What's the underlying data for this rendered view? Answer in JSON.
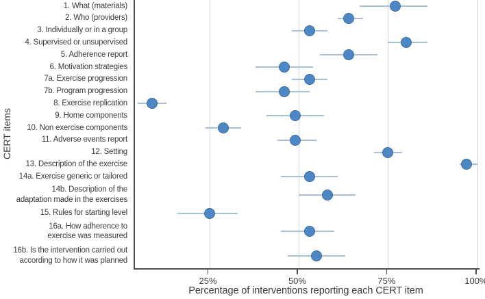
{
  "figure": {
    "x_axis_title": "Percentage of interventions reporting each CERT item",
    "y_axis_title": "CERT items"
  },
  "colors": {
    "dot_fill": "#4c87c6",
    "dot_border": "#3b6da5",
    "error_bar": "#a6bfd6",
    "gridline": "#cbd5dc",
    "axis_line": "#4d4d4d",
    "text": "#3b3b3b"
  },
  "chart_data": {
    "type": "scatter",
    "subtype": "horizontal-dot-plot-with-error-bars",
    "title": "",
    "xlabel": "Percentage of interventions reporting each CERT item",
    "ylabel": "CERT items",
    "x_unit": "percent",
    "x_ticks": [
      25,
      50,
      75,
      100
    ],
    "x_tick_labels": [
      "25%",
      "50%",
      "75%",
      "100%"
    ],
    "x_axis_range_visible": [
      4.2,
      100.6
    ],
    "grid": "vertical gridlines at each x tick",
    "legend": "none",
    "items": [
      {
        "label_lines": [
          "1. What (materials)"
        ],
        "value": 77,
        "ci_low": 67,
        "ci_high": 86
      },
      {
        "label_lines": [
          "2. Who (providers)"
        ],
        "value": 64,
        "ci_low": 61,
        "ci_high": 68
      },
      {
        "label_lines": [
          "3. Individually or in a group"
        ],
        "value": 53,
        "ci_low": 48,
        "ci_high": 58
      },
      {
        "label_lines": [
          "4. Supervised or unsupervised"
        ],
        "value": 80,
        "ci_low": 75,
        "ci_high": 86
      },
      {
        "label_lines": [
          "5. Adherence report"
        ],
        "value": 64,
        "ci_low": 56,
        "ci_high": 72
      },
      {
        "label_lines": [
          "6. Motivation strategies"
        ],
        "value": 46,
        "ci_low": 38,
        "ci_high": 54
      },
      {
        "label_lines": [
          "7a. Exercise progression"
        ],
        "value": 53,
        "ci_low": 48,
        "ci_high": 58
      },
      {
        "label_lines": [
          "7b. Program progression"
        ],
        "value": 46,
        "ci_low": 38,
        "ci_high": 53
      },
      {
        "label_lines": [
          "8. Exercise replication"
        ],
        "value": 9,
        "ci_low": 5,
        "ci_high": 13
      },
      {
        "label_lines": [
          "9. Home components"
        ],
        "value": 49,
        "ci_low": 41,
        "ci_high": 57
      },
      {
        "label_lines": [
          "10. Non exercise components"
        ],
        "value": 29,
        "ci_low": 24,
        "ci_high": 34
      },
      {
        "label_lines": [
          "11. Adverse events report"
        ],
        "value": 49,
        "ci_low": 44,
        "ci_high": 55
      },
      {
        "label_lines": [
          "12. Setting"
        ],
        "value": 75,
        "ci_low": 71,
        "ci_high": 79
      },
      {
        "label_lines": [
          "13. Description of the exercise"
        ],
        "value": 97,
        "ci_low": 95,
        "ci_high": 100
      },
      {
        "label_lines": [
          "14a. Exercise generic or tailored"
        ],
        "value": 53,
        "ci_low": 45,
        "ci_high": 61
      },
      {
        "label_lines": [
          "14b. Description of the",
          "adaptation made in the exercises"
        ],
        "value": 58,
        "ci_low": 50,
        "ci_high": 66
      },
      {
        "label_lines": [
          "15. Rules for starting level"
        ],
        "value": 25,
        "ci_low": 16,
        "ci_high": 33
      },
      {
        "label_lines": [
          "16a. How adherence to",
          "exercise was measured"
        ],
        "value": 53,
        "ci_low": 45,
        "ci_high": 60
      },
      {
        "label_lines": [
          "16b. Is the intervention carried out",
          "according to how it was planned"
        ],
        "value": 55,
        "ci_low": 47,
        "ci_high": 63
      }
    ]
  }
}
